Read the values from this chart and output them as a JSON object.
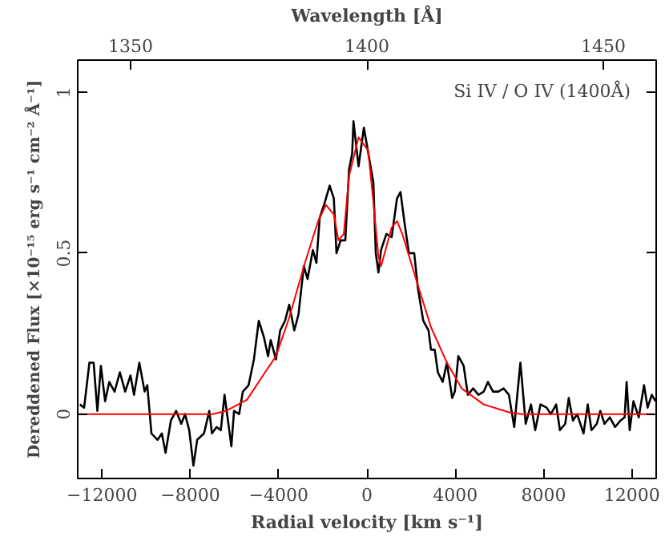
{
  "chart_data": {
    "type": "line",
    "xlabel": "Radial velocity [km s⁻¹]",
    "ylabel": "Dereddened Flux [×10⁻¹⁵ erg s⁻¹ cm⁻² Å⁻¹]",
    "x2label": "Wavelength [Å]",
    "annotations": [
      "Si IV / O IV (1400Å)"
    ],
    "xlim": [
      -13100,
      13100
    ],
    "xticks": [
      -12000,
      -8000,
      -4000,
      0,
      4000,
      8000,
      12000
    ],
    "x2lim": [
      1338.8,
      1461.2
    ],
    "x2ticks": [
      1350,
      1400,
      1450
    ],
    "ylim": [
      -0.2,
      1.1
    ],
    "yticks": [
      0,
      0.5,
      1
    ],
    "grid": false,
    "marker": "none",
    "line_style": "solid",
    "series": [
      {
        "color": "#000000",
        "x": [
          -13000,
          -12810,
          -12570,
          -12380,
          -12210,
          -12050,
          -11860,
          -11670,
          -11430,
          -11190,
          -10950,
          -10710,
          -10550,
          -10310,
          -10070,
          -9950,
          -9760,
          -9480,
          -9290,
          -9120,
          -8880,
          -8640,
          -8410,
          -8240,
          -8050,
          -7860,
          -7690,
          -7380,
          -7140,
          -7020,
          -6810,
          -6620,
          -6450,
          -6140,
          -6020,
          -5790,
          -5620,
          -5360,
          -5120,
          -4900,
          -4670,
          -4480,
          -4360,
          -4120,
          -3930,
          -3710,
          -3520,
          -3290,
          -3100,
          -2860,
          -2690,
          -2450,
          -2290,
          -2140,
          -1900,
          -1690,
          -1500,
          -1380,
          -1190,
          -980,
          -810,
          -670,
          -610,
          -380,
          -140,
          290,
          400,
          520,
          640,
          880,
          1120,
          1360,
          1520,
          1710,
          1900,
          2140,
          2310,
          2550,
          2790,
          2900,
          3070,
          3210,
          3430,
          3620,
          3860,
          3980,
          4140,
          4380,
          4570,
          4810,
          5050,
          5290,
          5480,
          5710,
          5950,
          6190,
          6430,
          6670,
          6950,
          7190,
          7430,
          7620,
          7860,
          8140,
          8330,
          8570,
          8740,
          8980,
          9140,
          9330,
          9520,
          9810,
          10000,
          10170,
          10410,
          10570,
          10760,
          11000,
          11240,
          11480,
          11670,
          11760,
          11900,
          12070,
          12310,
          12550,
          12710,
          12900,
          13070
        ],
        "values": [
          0.03,
          0.02,
          0.16,
          0.16,
          0.01,
          0.15,
          0.04,
          0.1,
          0.07,
          0.13,
          0.07,
          0.12,
          0.06,
          0.16,
          0.07,
          0.09,
          -0.06,
          -0.08,
          -0.06,
          -0.12,
          -0.02,
          0.01,
          -0.03,
          0,
          -0.05,
          -0.16,
          -0.08,
          -0.06,
          0.01,
          -0.06,
          -0.04,
          -0.05,
          0.06,
          -0.1,
          0.01,
          0,
          0.07,
          0.09,
          0.17,
          0.29,
          0.24,
          0.18,
          0.23,
          0.17,
          0.26,
          0.29,
          0.34,
          0.26,
          0.31,
          0.46,
          0.42,
          0.51,
          0.47,
          0.61,
          0.66,
          0.71,
          0.67,
          0.5,
          0.54,
          0.54,
          0.76,
          0.81,
          0.91,
          0.77,
          0.89,
          0.72,
          0.5,
          0.44,
          0.51,
          0.56,
          0.55,
          0.67,
          0.69,
          0.59,
          0.5,
          0.5,
          0.39,
          0.29,
          0.26,
          0.2,
          0.2,
          0.13,
          0.1,
          0.16,
          0.05,
          0.07,
          0.18,
          0.15,
          0.06,
          0.08,
          0.06,
          0.07,
          0.1,
          0.07,
          0.07,
          0.08,
          0.06,
          -0.04,
          0.16,
          -0.03,
          0.03,
          -0.05,
          0.03,
          0.02,
          0,
          0.03,
          -0.05,
          -0.03,
          0.05,
          -0.02,
          0,
          -0.06,
          0.03,
          -0.05,
          -0.03,
          0.01,
          -0.03,
          -0.01,
          -0.04,
          -0.02,
          -0.01,
          0.1,
          -0.05,
          0.04,
          -0.01,
          0.09,
          0.02,
          0.06,
          0.04
        ]
      },
      {
        "color": "#ff0000",
        "x": [
          -13000,
          -7000,
          -6380,
          -5430,
          -4710,
          -4120,
          -3520,
          -2810,
          -2210,
          -1860,
          -1500,
          -1290,
          -1050,
          -810,
          -380,
          50,
          290,
          520,
          640,
          880,
          1120,
          1360,
          1600,
          2310,
          2900,
          3620,
          4290,
          5290,
          6480,
          7000,
          13000
        ],
        "values": [
          0,
          0,
          0.01,
          0.045,
          0.12,
          0.18,
          0.3,
          0.47,
          0.6,
          0.65,
          0.62,
          0.54,
          0.56,
          0.74,
          0.86,
          0.82,
          0.66,
          0.49,
          0.46,
          0.52,
          0.58,
          0.6,
          0.56,
          0.4,
          0.27,
          0.16,
          0.08,
          0.03,
          0.005,
          0,
          0
        ]
      }
    ]
  }
}
